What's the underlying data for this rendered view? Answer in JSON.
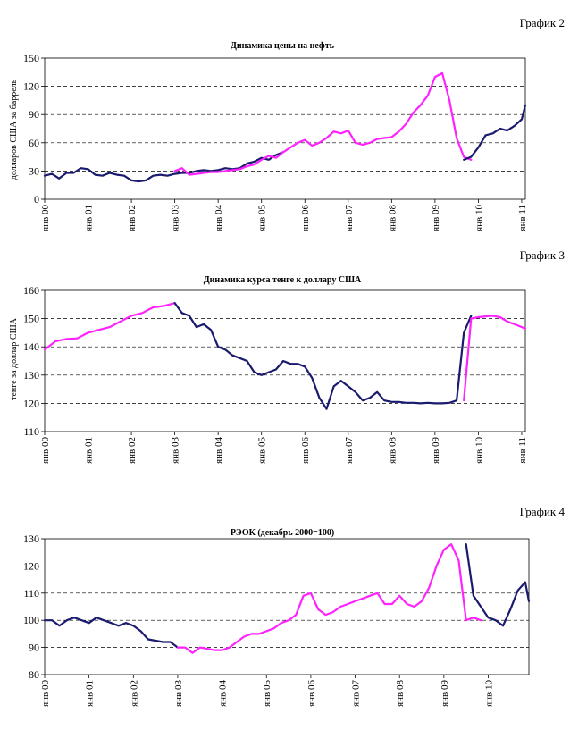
{
  "colors": {
    "dark_series": "#1a1a6e",
    "pink_series": "#ff22ff",
    "grid": "#000000"
  },
  "chart_data": [
    {
      "type": "line",
      "label": "График 2",
      "title": "Динамика цены на нефть",
      "ylabel": "долларов США за баррель",
      "xlabel": "",
      "ylim": [
        0,
        150
      ],
      "yticks": [
        0,
        30,
        60,
        90,
        120,
        150
      ],
      "xticks": [
        "янв 00",
        "янв 01",
        "янв 02",
        "янв 03",
        "янв 04",
        "янв 05",
        "янв 06",
        "янв 07",
        "янв 08",
        "янв 09",
        "янв 10",
        "янв 11"
      ],
      "xrange": [
        0,
        133
      ],
      "grid": "horizontal dashed",
      "series": [
        {
          "color_key": "dark_series",
          "x": [
            0,
            2,
            4,
            6,
            8,
            10,
            12,
            14,
            16,
            18,
            20,
            22,
            24,
            26,
            28,
            30,
            32,
            34,
            36,
            38,
            40,
            42,
            44,
            46,
            48,
            50,
            52,
            54,
            56,
            58,
            60,
            62,
            64,
            66
          ],
          "values": [
            25,
            27,
            22,
            28,
            28,
            33,
            32,
            26,
            25,
            28,
            26,
            25,
            20,
            19,
            20,
            25,
            26,
            25,
            27,
            28,
            28,
            30,
            31,
            30,
            31,
            33,
            32,
            33,
            38,
            40,
            44,
            42,
            47,
            50
          ]
        },
        {
          "color_key": "pink_series",
          "x": [
            36,
            38,
            40,
            42,
            44,
            46,
            48,
            50,
            52,
            54,
            56,
            58,
            60,
            62,
            64,
            66,
            68,
            70,
            72,
            74,
            76,
            78,
            80,
            82,
            84,
            86,
            88,
            90,
            92,
            94,
            96,
            98,
            100,
            102,
            104,
            106,
            108,
            110,
            112,
            114,
            116,
            118
          ],
          "values": [
            30,
            33,
            26,
            27,
            28,
            29,
            29,
            30,
            31,
            32,
            35,
            37,
            42,
            46,
            44,
            50,
            55,
            60,
            63,
            57,
            60,
            65,
            72,
            70,
            73,
            60,
            58,
            60,
            64,
            65,
            66,
            72,
            80,
            92,
            100,
            110,
            130,
            134,
            105,
            65,
            45,
            42
          ]
        },
        {
          "color_key": "dark_series",
          "x": [
            116,
            118,
            120,
            122,
            124,
            126,
            128,
            130,
            132,
            133
          ],
          "values": [
            42,
            45,
            55,
            68,
            70,
            75,
            73,
            78,
            85,
            100
          ]
        }
      ]
    },
    {
      "type": "line",
      "label": "График 3",
      "title": "Динамика курса тенге к доллару США",
      "ylabel": "тенге за доллар США",
      "xlabel": "",
      "ylim": [
        110,
        160
      ],
      "yticks": [
        110,
        120,
        130,
        140,
        150,
        160
      ],
      "xticks": [
        "янв 00",
        "янв 01",
        "янв 02",
        "янв 03",
        "янв 04",
        "янв 05",
        "янв 06",
        "янв 07",
        "янв 08",
        "янв 09",
        "янв 10",
        "янв 11"
      ],
      "xrange": [
        0,
        133
      ],
      "grid": "horizontal dashed",
      "series": [
        {
          "color_key": "pink_series",
          "x": [
            0,
            3,
            6,
            9,
            12,
            15,
            18,
            21,
            24,
            27,
            30,
            33,
            36
          ],
          "values": [
            139,
            142,
            142.8,
            143,
            145,
            146,
            147,
            149,
            151,
            152,
            154,
            154.5,
            155.5
          ]
        },
        {
          "color_key": "dark_series",
          "x": [
            36,
            38,
            40,
            42,
            44,
            46,
            48,
            50,
            52,
            54,
            56,
            58,
            60,
            62,
            64,
            66,
            68,
            70,
            72,
            74,
            76,
            78,
            80,
            82,
            84,
            86,
            88,
            90,
            92,
            94,
            96,
            98,
            100,
            102,
            104,
            106,
            108,
            110,
            112,
            114,
            116,
            118
          ],
          "values": [
            155.5,
            152,
            151,
            147,
            148,
            146,
            140,
            139,
            137,
            136,
            135,
            131,
            130,
            131,
            132,
            135,
            134,
            134,
            133,
            129,
            122,
            118,
            126,
            128,
            126,
            124,
            121,
            122,
            124,
            121,
            120.5,
            120.5,
            120.2,
            120.2,
            120,
            120.2,
            120,
            120,
            120.2,
            121,
            145,
            151
          ]
        },
        {
          "color_key": "pink_series",
          "x": [
            116,
            118,
            120,
            122,
            124,
            126,
            128,
            130,
            132,
            133
          ],
          "values": [
            121,
            150,
            150.5,
            150.8,
            151,
            150.5,
            149,
            148,
            147,
            146.5
          ]
        }
      ]
    },
    {
      "type": "line",
      "label": "График 4",
      "title": "РЭОК (декабрь 2000=100)",
      "ylabel": "",
      "xlabel": "",
      "ylim": [
        80,
        130
      ],
      "yticks": [
        80,
        90,
        100,
        110,
        120,
        130
      ],
      "xticks": [
        "янв 00",
        "янв 01",
        "янв 02",
        "янв 03",
        "янв 04",
        "янв 05",
        "янв 06",
        "янв 07",
        "янв 08",
        "янв 09",
        "янв 10"
      ],
      "xrange": [
        0,
        131
      ],
      "grid": "horizontal dashed",
      "series": [
        {
          "color_key": "dark_series",
          "x": [
            0,
            2,
            4,
            6,
            8,
            10,
            12,
            14,
            16,
            18,
            20,
            22,
            24,
            26,
            28,
            30,
            32,
            34,
            36
          ],
          "values": [
            100,
            100,
            98,
            100,
            101,
            100,
            99,
            101,
            100,
            99,
            98,
            99,
            98,
            96,
            93,
            92.5,
            92,
            92,
            90
          ]
        },
        {
          "color_key": "pink_series",
          "x": [
            36,
            38,
            40,
            42,
            44,
            46,
            48,
            50,
            52,
            54,
            56,
            58,
            60,
            62,
            64,
            66,
            68,
            70,
            72,
            74,
            76,
            78,
            80,
            82,
            84,
            86,
            88,
            90,
            92,
            94,
            96,
            98,
            100,
            102,
            104,
            106,
            108,
            110,
            112,
            114,
            116,
            118
          ],
          "values": [
            90,
            90,
            88,
            90,
            89.5,
            89,
            89,
            90,
            92,
            94,
            95,
            95,
            96,
            97,
            99,
            100,
            102,
            109,
            110,
            104,
            102,
            103,
            105,
            106,
            107,
            108,
            109,
            110,
            106,
            106,
            109,
            106,
            105,
            107,
            112,
            120,
            126,
            128,
            122,
            100,
            101,
            100
          ]
        },
        {
          "color_key": "dark_series",
          "x": [
            114,
            116,
            118,
            120,
            122,
            124,
            126,
            128,
            130,
            131
          ],
          "values": [
            128,
            109,
            105,
            101,
            100,
            98,
            104,
            111,
            114,
            107
          ]
        }
      ]
    }
  ]
}
